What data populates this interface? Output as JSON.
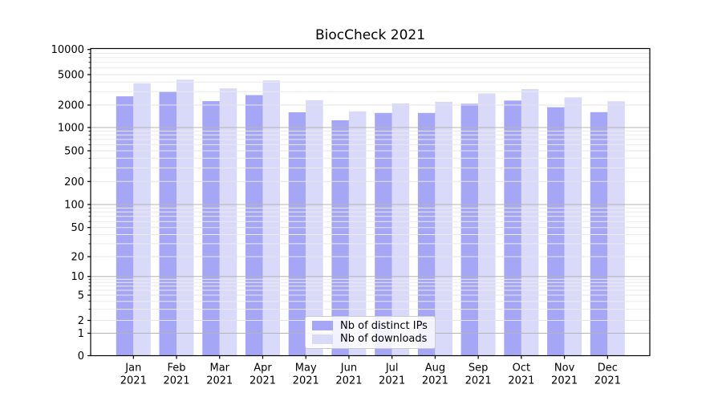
{
  "figure": {
    "title": "BiocCheck 2021"
  },
  "legend": {
    "items": [
      {
        "label": "Nb of distinct IPs",
        "color": "#a6a6f6"
      },
      {
        "label": "Nb of downloads",
        "color": "#d9d9fa"
      }
    ]
  },
  "chart_data": {
    "type": "bar",
    "title": "BiocCheck 2021",
    "categories": [
      {
        "month": "Jan",
        "year": "2021"
      },
      {
        "month": "Feb",
        "year": "2021"
      },
      {
        "month": "Mar",
        "year": "2021"
      },
      {
        "month": "Apr",
        "year": "2021"
      },
      {
        "month": "May",
        "year": "2021"
      },
      {
        "month": "Jun",
        "year": "2021"
      },
      {
        "month": "Jul",
        "year": "2021"
      },
      {
        "month": "Aug",
        "year": "2021"
      },
      {
        "month": "Sep",
        "year": "2021"
      },
      {
        "month": "Oct",
        "year": "2021"
      },
      {
        "month": "Nov",
        "year": "2021"
      },
      {
        "month": "Dec",
        "year": "2021"
      }
    ],
    "series": [
      {
        "name": "Nb of distinct IPs",
        "color": "#a6a6f6",
        "values": [
          2600,
          3000,
          2250,
          2700,
          1600,
          1250,
          1570,
          1570,
          2080,
          2290,
          1870,
          1610
        ]
      },
      {
        "name": "Nb of downloads",
        "color": "#d9d9fa",
        "values": [
          3850,
          4300,
          3300,
          4200,
          2310,
          1650,
          2100,
          2210,
          2840,
          3230,
          2520,
          2240
        ]
      }
    ],
    "yscale": "symlog",
    "y_ticks": [
      0,
      1,
      2,
      5,
      10,
      20,
      50,
      100,
      200,
      500,
      1000,
      2000,
      5000,
      10000
    ],
    "ylim": [
      0,
      10000
    ],
    "xlabel": "",
    "ylabel": "",
    "grid": "both",
    "legend_position": "lower center"
  }
}
